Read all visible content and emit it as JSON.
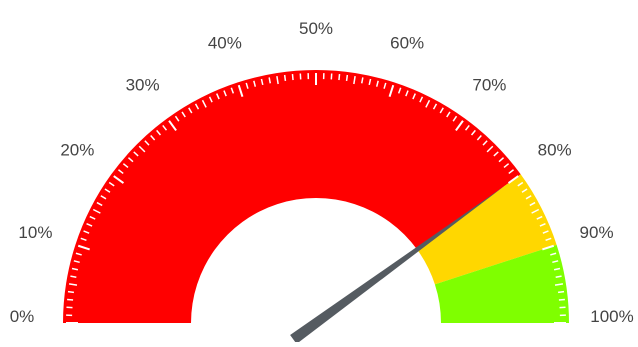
{
  "chart_data": {
    "type": "gauge",
    "min": 0,
    "max": 100,
    "value": 80,
    "tick_labels": [
      "0%",
      "10%",
      "20%",
      "30%",
      "40%",
      "50%",
      "60%",
      "70%",
      "80%",
      "90%",
      "100%"
    ],
    "bands": [
      {
        "from": 0,
        "to": 80,
        "color": "#ff0000"
      },
      {
        "from": 80,
        "to": 90,
        "color": "#ffd700"
      },
      {
        "from": 90,
        "to": 100,
        "color": "#7fff00"
      }
    ],
    "needle_color": "#555b61",
    "tick_color": "#ffffff"
  }
}
